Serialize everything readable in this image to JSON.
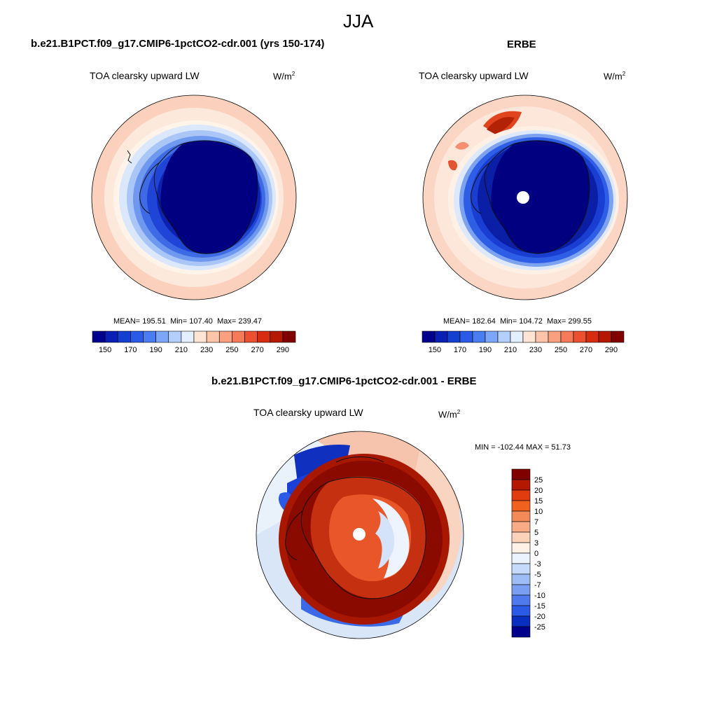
{
  "figure": {
    "season": "JJA",
    "units_base": "W/m",
    "units_exp": "2"
  },
  "panels": {
    "model": {
      "header": "b.e21.B1PCT.f09_g17.CMIP6-1pctCO2-cdr.001 (yrs 150-174)",
      "variable": "TOA clearsky upward LW",
      "mean_label": "MEAN=",
      "mean": "195.51",
      "min_label": "Min=",
      "min": "107.40",
      "max_label": "Max=",
      "max": "239.47"
    },
    "obs": {
      "header": "ERBE",
      "variable": "TOA clearsky upward LW",
      "mean_label": "MEAN=",
      "mean": "182.64",
      "min_label": "Min=",
      "min": "104.72",
      "max_label": "Max=",
      "max": "299.55"
    },
    "diff": {
      "header": "b.e21.B1PCT.f09_g17.CMIP6-1pctCO2-cdr.001 - ERBE",
      "variable": "TOA clearsky upward LW",
      "minmax": "MIN = -102.44 MAX =  51.73"
    }
  },
  "colorbars": {
    "abs": {
      "colors": [
        "#00008c",
        "#0a20b4",
        "#1440d2",
        "#2a5ae8",
        "#4a7cf2",
        "#7ea6f8",
        "#b4cffb",
        "#e4efff",
        "#fde4d4",
        "#fcc4a8",
        "#f9a080",
        "#f47a58",
        "#ec5030",
        "#d82c10",
        "#b41800",
        "#800000"
      ],
      "labels": [
        "150",
        "170",
        "190",
        "210",
        "230",
        "250",
        "270",
        "290"
      ]
    },
    "diff": {
      "colors": [
        "#800000",
        "#b41800",
        "#e03c10",
        "#f0601e",
        "#f48a58",
        "#f8ab86",
        "#fcd2ba",
        "#fff1e6",
        "#ebf3ff",
        "#c6dafb",
        "#9ebcf6",
        "#7a9ef2",
        "#4f7aee",
        "#2a5ae6",
        "#0a2ec0",
        "#00008c"
      ],
      "labels": [
        "25",
        "20",
        "15",
        "10",
        "7",
        "5",
        "3",
        "0",
        "-3",
        "-5",
        "-7",
        "-10",
        "-15",
        "-20",
        "-25"
      ]
    }
  },
  "colors": {
    "ocean_mid": "#fde0d2",
    "ocean_warm": "#f8b49a",
    "diff_red": "#a81800",
    "diff_deep": "#8a0a00",
    "diff_light": "#d8e6f8",
    "coast": "#111111"
  }
}
